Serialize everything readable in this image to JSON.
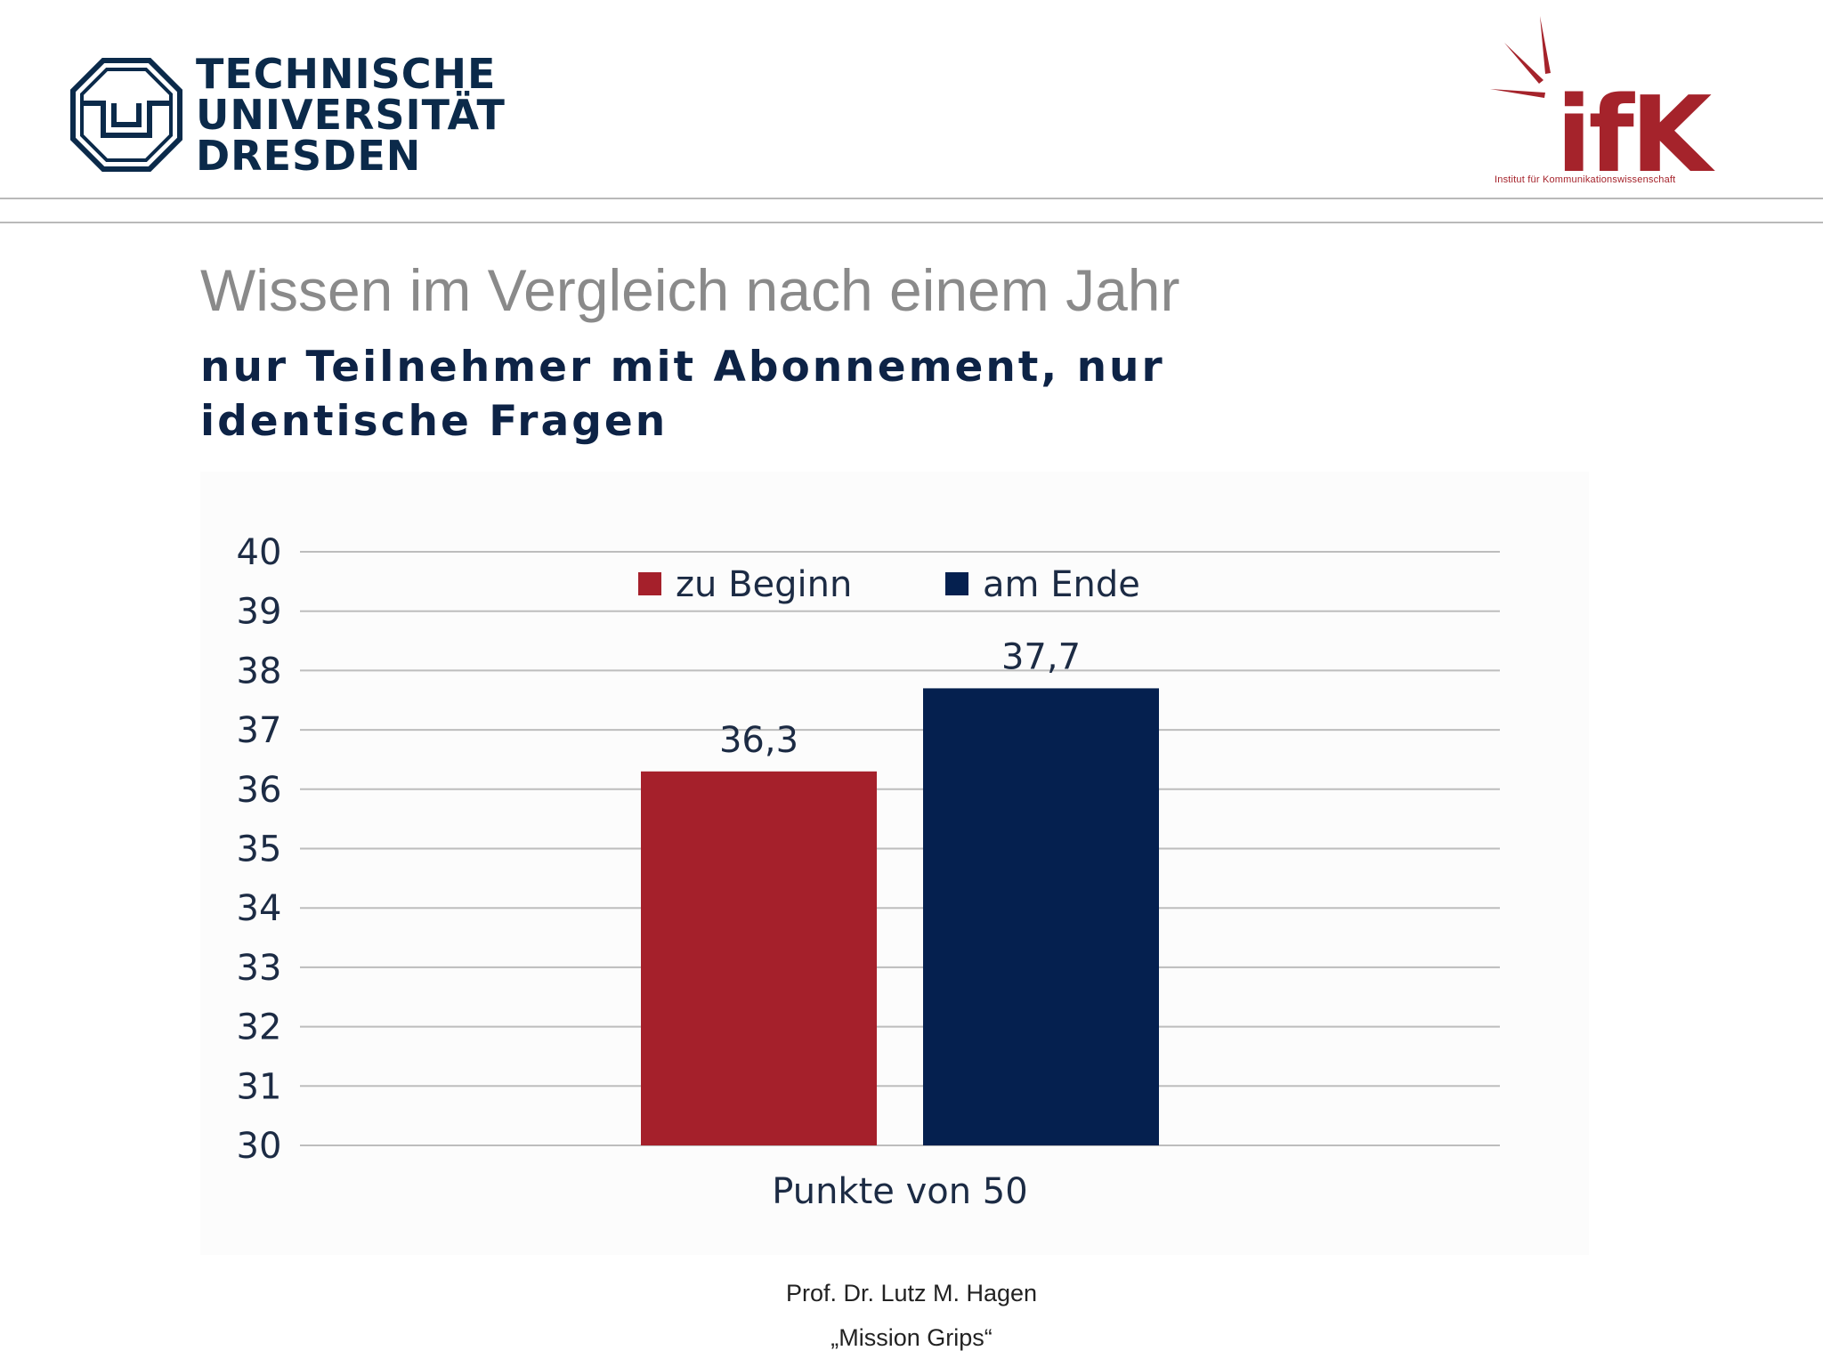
{
  "header": {
    "tud_logo_lines": [
      "TECHNISCHE",
      "UNIVERSITÄT",
      "DRESDEN"
    ],
    "ifk_logo_text": "ifK",
    "ifk_subtitle": "Institut für Kommunikationswissenschaft"
  },
  "slide": {
    "title": "Wissen im Vergleich nach einem Jahr",
    "subtitle": "nur Teilnehmer mit Abonnement, nur identische Fragen"
  },
  "colors": {
    "zu_beginn": "#a5202b",
    "am_ende": "#05204f",
    "grid": "#bdbdbd",
    "axis_text": "#1c2b44"
  },
  "chart_data": {
    "type": "bar",
    "categories": [
      "Punkte von 50"
    ],
    "series": [
      {
        "name": "zu Beginn",
        "values": [
          36.3
        ],
        "label": "36,3"
      },
      {
        "name": "am Ende",
        "values": [
          37.7
        ],
        "label": "37,7"
      }
    ],
    "ylim": [
      30,
      40
    ],
    "yticks": [
      40,
      39,
      38,
      37,
      36,
      35,
      34,
      33,
      32,
      31,
      30
    ],
    "grid": true,
    "legend": "top-center"
  },
  "footer": {
    "author": "Prof. Dr. Lutz M. Hagen",
    "project": "„Mission Grips“"
  }
}
